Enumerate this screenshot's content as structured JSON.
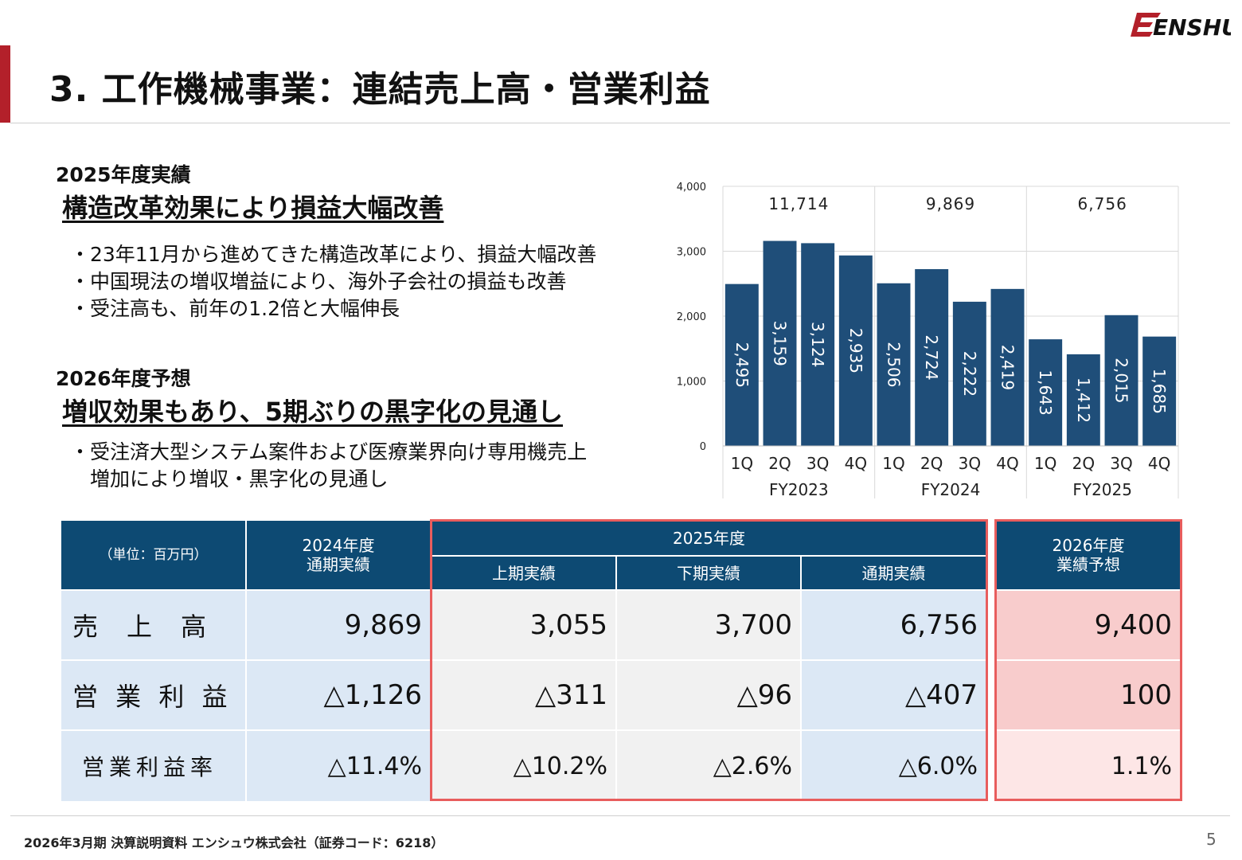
{
  "logo_text": "ENSHU",
  "page_title": "3. 工作機械事業：連結売上高・営業利益",
  "results_section": {
    "label": "2025年度実績",
    "headline": "構造改革効果により損益大幅改善",
    "bullets": [
      "・23年11月から進めてきた構造改革により、損益大幅改善",
      "・中国現法の増収増益により、海外子会社の損益も改善",
      "・受注高も、前年の1.2倍と大幅伸長"
    ]
  },
  "forecast_section": {
    "label": "2026年度予想",
    "headline": "増収効果もあり、5期ぶりの黒字化の見通し",
    "bullets": [
      "・受注済大型システム案件および医療業界向け専用機売上",
      "　増加により増収・黒字化の見通し"
    ]
  },
  "chart_data": {
    "type": "bar",
    "y_ticks": [
      "4,000",
      "3,000",
      "2,000",
      "1,000",
      "0"
    ],
    "ylim": [
      0,
      4000
    ],
    "grid": true,
    "bar_color": "#1f4e79",
    "categories": [
      "1Q",
      "2Q",
      "3Q",
      "4Q",
      "1Q",
      "2Q",
      "3Q",
      "4Q",
      "1Q",
      "2Q",
      "3Q",
      "4Q"
    ],
    "values": [
      2495,
      3159,
      3124,
      2935,
      2506,
      2724,
      2222,
      2419,
      1643,
      1412,
      2015,
      1685
    ],
    "value_labels": [
      "2,495",
      "3,159",
      "3,124",
      "2,935",
      "2,506",
      "2,724",
      "2,222",
      "2,419",
      "1,643",
      "1,412",
      "2,015",
      "1,685"
    ],
    "groups": [
      {
        "name": "FY2023",
        "total": "11,714"
      },
      {
        "name": "FY2024",
        "total": "9,869"
      },
      {
        "name": "FY2025",
        "total": "6,756"
      }
    ]
  },
  "table": {
    "unit": "（単位：百万円）",
    "col_2024": "2024年度\n通期実績",
    "group_2025": "2025年度",
    "sub_h1": "上期実績",
    "sub_h2": "下期実績",
    "sub_full": "通期実績",
    "col_2026": "2026年度\n業績予想",
    "rows": [
      {
        "label": "売　上　高",
        "v2024": "9,869",
        "h1": "3,055",
        "h2": "3,700",
        "full": "6,756",
        "f2026": "9,400"
      },
      {
        "label": "営 業 利 益",
        "v2024": "△1,126",
        "h1": "△311",
        "h2": "△96",
        "full": "△407",
        "f2026": "100"
      },
      {
        "label": "営業利益率",
        "v2024": "△11.4%",
        "h1": "△10.2%",
        "h2": "△2.6%",
        "full": "△6.0%",
        "f2026": "1.1%"
      }
    ]
  },
  "footer": {
    "text": "2026年3月期 決算説明資料 エンシュウ株式会社（証券コード：6218）",
    "page_number": "5"
  }
}
